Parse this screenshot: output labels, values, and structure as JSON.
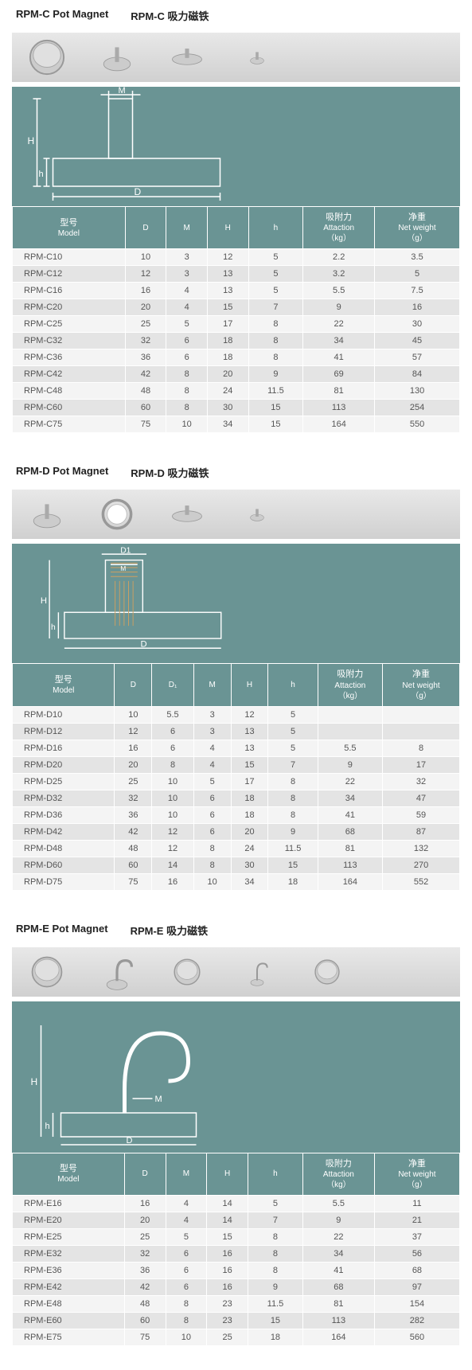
{
  "sections": [
    {
      "title_en": "RPM-C Pot Magnet",
      "title_cn": "RPM-C 吸力磁铁",
      "diagram_type": "stud",
      "columns": [
        {
          "cn": "型号",
          "en": "Model"
        },
        {
          "cn": "",
          "en": "D"
        },
        {
          "cn": "",
          "en": "M"
        },
        {
          "cn": "",
          "en": "H"
        },
        {
          "cn": "",
          "en": "h"
        },
        {
          "cn": "吸附力",
          "en": "Attaction\n（kg）"
        },
        {
          "cn": "净重",
          "en": "Net weight\n（g）"
        }
      ],
      "rows": [
        [
          "RPM-C10",
          "10",
          "3",
          "12",
          "5",
          "2.2",
          "3.5"
        ],
        [
          "RPM-C12",
          "12",
          "3",
          "13",
          "5",
          "3.2",
          "5"
        ],
        [
          "RPM-C16",
          "16",
          "4",
          "13",
          "5",
          "5.5",
          "7.5"
        ],
        [
          "RPM-C20",
          "20",
          "4",
          "15",
          "7",
          "9",
          "16"
        ],
        [
          "RPM-C25",
          "25",
          "5",
          "17",
          "8",
          "22",
          "30"
        ],
        [
          "RPM-C32",
          "32",
          "6",
          "18",
          "8",
          "34",
          "45"
        ],
        [
          "RPM-C36",
          "36",
          "6",
          "18",
          "8",
          "41",
          "57"
        ],
        [
          "RPM-C42",
          "42",
          "8",
          "20",
          "9",
          "69",
          "84"
        ],
        [
          "RPM-C48",
          "48",
          "8",
          "24",
          "11.5",
          "81",
          "130"
        ],
        [
          "RPM-C60",
          "60",
          "8",
          "30",
          "15",
          "113",
          "254"
        ],
        [
          "RPM-C75",
          "75",
          "10",
          "34",
          "15",
          "164",
          "550"
        ]
      ]
    },
    {
      "title_en": "RPM-D Pot Magnet",
      "title_cn": "RPM-D 吸力磁铁",
      "diagram_type": "threaded",
      "columns": [
        {
          "cn": "型号",
          "en": "Model"
        },
        {
          "cn": "",
          "en": "D"
        },
        {
          "cn": "",
          "en": "D₁"
        },
        {
          "cn": "",
          "en": "M"
        },
        {
          "cn": "",
          "en": "H"
        },
        {
          "cn": "",
          "en": "h"
        },
        {
          "cn": "吸附力",
          "en": "Attaction\n（kg）"
        },
        {
          "cn": "净重",
          "en": "Net weight\n（g）"
        }
      ],
      "rows": [
        [
          "RPM-D10",
          "10",
          "5.5",
          "3",
          "12",
          "5",
          "",
          ""
        ],
        [
          "RPM-D12",
          "12",
          "6",
          "3",
          "13",
          "5",
          "",
          ""
        ],
        [
          "RPM-D16",
          "16",
          "6",
          "4",
          "13",
          "5",
          "5.5",
          "8"
        ],
        [
          "RPM-D20",
          "20",
          "8",
          "4",
          "15",
          "7",
          "9",
          "17"
        ],
        [
          "RPM-D25",
          "25",
          "10",
          "5",
          "17",
          "8",
          "22",
          "32"
        ],
        [
          "RPM-D32",
          "32",
          "10",
          "6",
          "18",
          "8",
          "34",
          "47"
        ],
        [
          "RPM-D36",
          "36",
          "10",
          "6",
          "18",
          "8",
          "41",
          "59"
        ],
        [
          "RPM-D42",
          "42",
          "12",
          "6",
          "20",
          "9",
          "68",
          "87"
        ],
        [
          "RPM-D48",
          "48",
          "12",
          "8",
          "24",
          "11.5",
          "81",
          "132"
        ],
        [
          "RPM-D60",
          "60",
          "14",
          "8",
          "30",
          "15",
          "113",
          "270"
        ],
        [
          "RPM-D75",
          "75",
          "16",
          "10",
          "34",
          "18",
          "164",
          "552"
        ]
      ]
    },
    {
      "title_en": "RPM-E Pot Magnet",
      "title_cn": "RPM-E 吸力磁铁",
      "diagram_type": "hook",
      "columns": [
        {
          "cn": "型号",
          "en": "Model"
        },
        {
          "cn": "",
          "en": "D"
        },
        {
          "cn": "",
          "en": "M"
        },
        {
          "cn": "",
          "en": "H"
        },
        {
          "cn": "",
          "en": "h"
        },
        {
          "cn": "吸附力",
          "en": "Attaction\n（kg）"
        },
        {
          "cn": "净重",
          "en": "Net weight\n（g）"
        }
      ],
      "rows": [
        [
          "RPM-E16",
          "16",
          "4",
          "14",
          "5",
          "5.5",
          "11"
        ],
        [
          "RPM-E20",
          "20",
          "4",
          "14",
          "7",
          "9",
          "21"
        ],
        [
          "RPM-E25",
          "25",
          "5",
          "15",
          "8",
          "22",
          "37"
        ],
        [
          "RPM-E32",
          "32",
          "6",
          "16",
          "8",
          "34",
          "56"
        ],
        [
          "RPM-E36",
          "36",
          "6",
          "16",
          "8",
          "41",
          "68"
        ],
        [
          "RPM-E42",
          "42",
          "6",
          "16",
          "9",
          "68",
          "97"
        ],
        [
          "RPM-E48",
          "48",
          "8",
          "23",
          "11.5",
          "81",
          "154"
        ],
        [
          "RPM-E60",
          "60",
          "8",
          "23",
          "15",
          "113",
          "282"
        ],
        [
          "RPM-E75",
          "75",
          "10",
          "25",
          "18",
          "164",
          "560"
        ]
      ]
    }
  ],
  "colors": {
    "teal": "#6a9494",
    "strip_top": "#e8e8e8",
    "strip_bot": "#d0d0d0",
    "row_odd": "#f4f4f4",
    "row_even": "#e4e4e4",
    "text": "#555555"
  }
}
